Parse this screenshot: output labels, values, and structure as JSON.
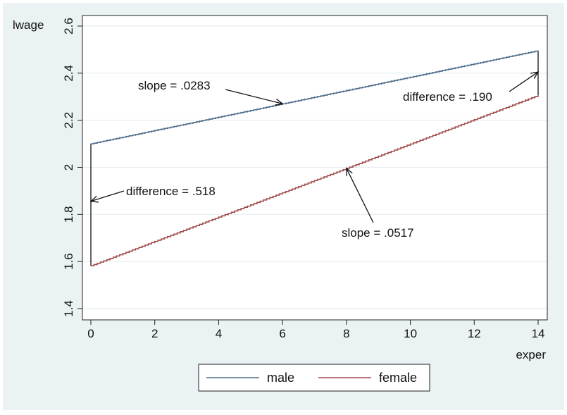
{
  "chart_data": {
    "type": "line",
    "title": "",
    "xlabel": "exper",
    "ylabel": "lwage",
    "xlim": [
      0,
      14
    ],
    "ylim": [
      1.4,
      2.6
    ],
    "xticks": [
      0,
      2,
      4,
      6,
      8,
      10,
      12,
      14
    ],
    "yticks": [
      1.4,
      1.6,
      1.8,
      2.0,
      2.2,
      2.4,
      2.6
    ],
    "xtick_labels": [
      "0",
      "2",
      "4",
      "6",
      "8",
      "10",
      "12",
      "14"
    ],
    "ytick_labels": [
      "1.4",
      "1.6",
      "1.8",
      "2",
      "2.2",
      "2.4",
      "2.6"
    ],
    "grid": true,
    "legend_position": "bottom",
    "series": [
      {
        "name": "male",
        "color": "#4b6a89",
        "x": [
          0,
          14
        ],
        "y": [
          2.1,
          2.496
        ]
      },
      {
        "name": "female",
        "color": "#a04a4a",
        "x": [
          0,
          14
        ],
        "y": [
          1.582,
          2.306
        ]
      }
    ],
    "annotations": [
      {
        "text": "slope = .0283",
        "target": [
          6,
          2.27
        ]
      },
      {
        "text": "slope = .0517",
        "target": [
          8,
          1.996
        ]
      },
      {
        "text": "difference = .518",
        "target": [
          0,
          1.856
        ]
      },
      {
        "text": "difference = .190",
        "target": [
          14,
          2.405
        ]
      }
    ],
    "brackets": [
      {
        "x": 0,
        "y_low": 1.582,
        "y_high": 2.1
      },
      {
        "x": 14,
        "y_low": 2.306,
        "y_high": 2.496
      }
    ]
  }
}
